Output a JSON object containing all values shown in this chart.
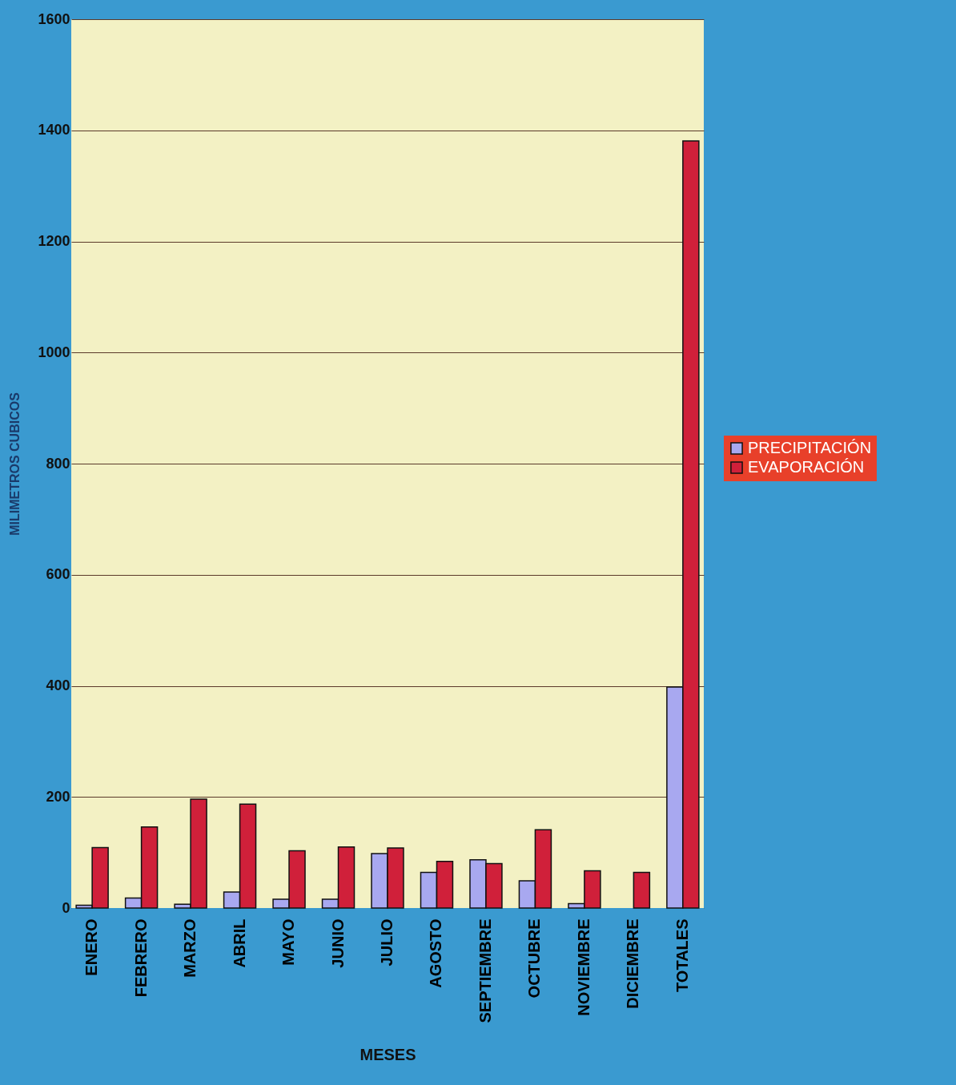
{
  "chart_data": {
    "type": "bar",
    "xlabel": "MESES",
    "ylabel": "MILIMETROS CUBICOS",
    "categories": [
      "ENERO",
      "FEBRERO",
      "MARZO",
      "ABRIL",
      "MAYO",
      "JUNIO",
      "JULIO",
      "AGOSTO",
      "SEPTIEMBRE",
      "OCTUBRE",
      "NOVIEMBRE",
      "DICIEMBRE",
      "TOTALES"
    ],
    "series": [
      {
        "name": "PRECIPITACIÓN",
        "color": "#a8a8f0",
        "values": [
          5,
          18,
          7,
          29,
          16,
          16,
          98,
          64,
          87,
          49,
          8,
          null,
          398
        ]
      },
      {
        "name": "EVAPORACIÓN",
        "color": "#d0203a",
        "values": [
          109,
          146,
          196,
          187,
          103,
          110,
          108,
          84,
          80,
          141,
          67,
          64,
          1381
        ]
      }
    ],
    "ylim": [
      0,
      1600
    ],
    "yticks": [
      0,
      200,
      400,
      600,
      800,
      1000,
      1200,
      1400,
      1600
    ],
    "grid": "y",
    "legend": "right"
  }
}
